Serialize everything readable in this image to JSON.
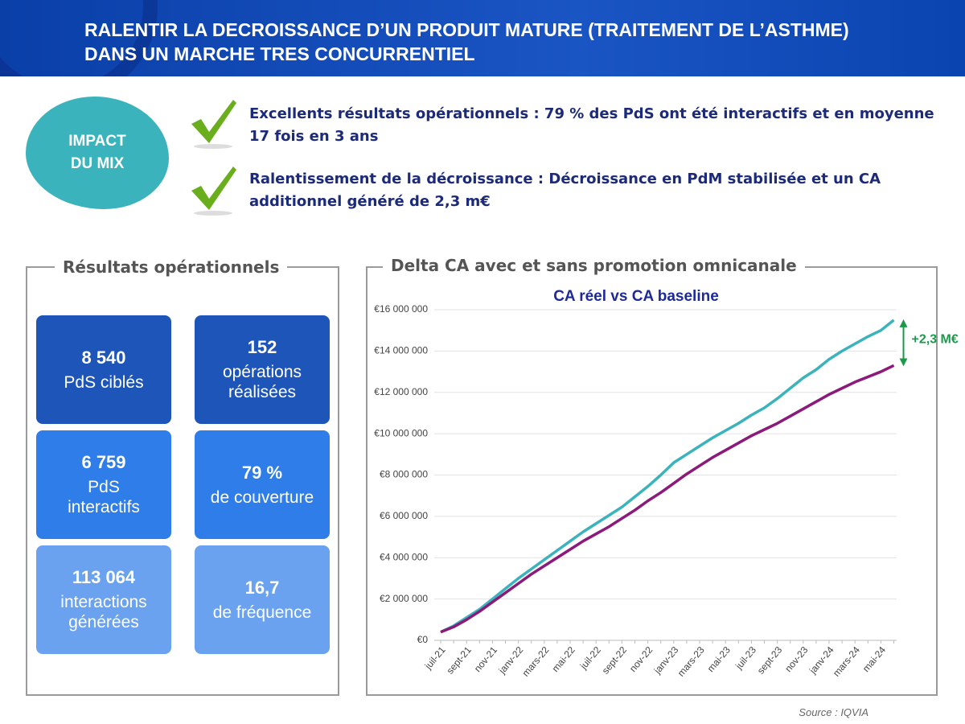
{
  "header": {
    "title_lines": [
      "RALENTIR LA DECROISSANCE D’UN PRODUIT MATURE (TRAITEMENT DE L’ASTHME)",
      "DANS UN MARCHE TRES CONCURRENTIEL"
    ]
  },
  "badge": [
    "IMPACT",
    "DU MIX"
  ],
  "highlights": [
    "Excellents résultats opérationnels : 79 % des PdS ont été interactifs et en moyenne 17 fois en 3 ans",
    "Ralentissement de la décroissance : Décroissance en PdM stabilisée et un CA additionnel généré de 2,3 m€"
  ],
  "results": {
    "title": "Résultats opérationnels",
    "tiles": [
      {
        "value": "8 540",
        "label": [
          "PdS ciblés"
        ]
      },
      {
        "value": "152",
        "label": [
          "opérations",
          "réalisées"
        ]
      },
      {
        "value": "6 759",
        "label": [
          "PdS",
          "interactifs"
        ]
      },
      {
        "value": "79 %",
        "label": [
          "de couverture"
        ]
      },
      {
        "value": "113 064",
        "label": [
          "interactions",
          "générées"
        ]
      },
      {
        "value": "16,7",
        "label": [
          "de fréquence"
        ]
      }
    ]
  },
  "chart_panel": {
    "title": "Delta CA  avec et sans promotion omnicanale"
  },
  "chart_data": {
    "type": "line",
    "title": "CA réel vs CA baseline",
    "annotation": "+2,3 M€",
    "categories": [
      "juil-21",
      null,
      "sept-21",
      null,
      "nov-21",
      null,
      "janv-22",
      null,
      "mars-22",
      null,
      "mai-22",
      null,
      "juil-22",
      null,
      "sept-22",
      null,
      "nov-22",
      null,
      "janv-23",
      null,
      "mars-23",
      null,
      "mai-23",
      null,
      "juil-23",
      null,
      "sept-23",
      null,
      "nov-23",
      null,
      "janv-24",
      null,
      "mars-24",
      null,
      "mai-24",
      null
    ],
    "series": [
      {
        "color": "#3bb3bd",
        "values": [
          400000,
          700000,
          1100000,
          1500000,
          2000000,
          2500000,
          3000000,
          3450000,
          3900000,
          4350000,
          4800000,
          5250000,
          5650000,
          6050000,
          6450000,
          6950000,
          7450000,
          8000000,
          8600000,
          9000000,
          9400000,
          9800000,
          10150000,
          10500000,
          10900000,
          11250000,
          11700000,
          12200000,
          12700000,
          13100000,
          13600000,
          14000000,
          14350000,
          14700000,
          15000000,
          15500000
        ]
      },
      {
        "color": "#8b1a7a",
        "values": [
          400000,
          650000,
          1000000,
          1400000,
          1850000,
          2300000,
          2750000,
          3200000,
          3600000,
          4000000,
          4400000,
          4800000,
          5150000,
          5500000,
          5900000,
          6300000,
          6750000,
          7150000,
          7600000,
          8050000,
          8450000,
          8850000,
          9200000,
          9550000,
          9900000,
          10200000,
          10500000,
          10850000,
          11200000,
          11550000,
          11900000,
          12200000,
          12500000,
          12750000,
          13000000,
          13300000
        ]
      }
    ],
    "ylim": [
      0,
      16000000
    ],
    "yticks": [
      {
        "value": 0,
        "label": "€0"
      },
      {
        "value": 2000000,
        "label": "€2 000 000"
      },
      {
        "value": 4000000,
        "label": "€4 000 000"
      },
      {
        "value": 6000000,
        "label": "€6 000 000"
      },
      {
        "value": 8000000,
        "label": "€8 000 000"
      },
      {
        "value": 10000000,
        "label": "€10 000 000"
      },
      {
        "value": 12000000,
        "label": "€12 000 000"
      },
      {
        "value": 14000000,
        "label": "€14 000 000"
      },
      {
        "value": 16000000,
        "label": "€16 000 000"
      }
    ],
    "grid": true
  },
  "source": "Source : IQVIA"
}
